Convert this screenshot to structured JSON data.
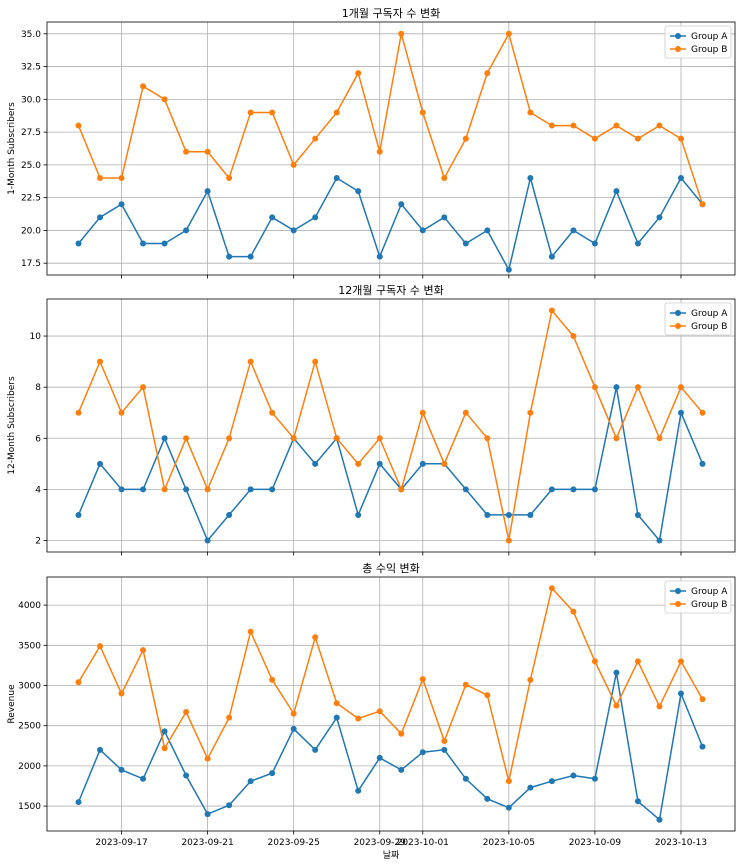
{
  "chart_data": [
    {
      "type": "line",
      "title": "1개월 구독자 수 변화",
      "xlabel": "",
      "ylabel": "1-Month Subscribers",
      "ylim": [
        16.6,
        35.9
      ],
      "yticks": [
        "17.5",
        "20.0",
        "22.5",
        "25.0",
        "27.5",
        "30.0",
        "32.5",
        "35.0"
      ],
      "ytick_values": [
        17.5,
        20.0,
        22.5,
        25.0,
        27.5,
        30.0,
        32.5,
        35.0
      ],
      "legend": "top-right",
      "grid": true,
      "series": [
        {
          "name": "Group A",
          "color": "#1f77b4",
          "values": [
            19,
            21,
            22,
            19,
            19,
            20,
            23,
            18,
            18,
            21,
            20,
            21,
            24,
            23,
            18,
            22,
            20,
            21,
            19,
            20,
            17,
            24,
            18,
            20,
            19,
            23,
            19,
            21,
            24,
            22
          ]
        },
        {
          "name": "Group B",
          "color": "#ff7f0e",
          "values": [
            28,
            24,
            24,
            31,
            30,
            26,
            26,
            24,
            29,
            29,
            25,
            27,
            29,
            32,
            26,
            35,
            29,
            24,
            27,
            32,
            35,
            29,
            28,
            28,
            27,
            28,
            27,
            28,
            27,
            22
          ]
        }
      ]
    },
    {
      "type": "line",
      "title": "12개월 구독자 수 변화",
      "xlabel": "",
      "ylabel": "12-Month Subscribers",
      "ylim": [
        1.55,
        11.45
      ],
      "yticks": [
        "2",
        "4",
        "6",
        "8",
        "10"
      ],
      "ytick_values": [
        2,
        4,
        6,
        8,
        10
      ],
      "legend": "top-right",
      "grid": true,
      "series": [
        {
          "name": "Group A",
          "color": "#1f77b4",
          "values": [
            3,
            5,
            4,
            4,
            6,
            4,
            2,
            3,
            4,
            4,
            6,
            5,
            6,
            3,
            5,
            4,
            5,
            5,
            4,
            3,
            3,
            3,
            4,
            4,
            4,
            8,
            3,
            2,
            7,
            5
          ]
        },
        {
          "name": "Group B",
          "color": "#ff7f0e",
          "values": [
            7,
            9,
            7,
            8,
            4,
            6,
            4,
            6,
            9,
            7,
            6,
            9,
            6,
            5,
            6,
            4,
            7,
            5,
            7,
            6,
            2,
            7,
            11,
            10,
            8,
            6,
            8,
            6,
            8,
            7
          ]
        }
      ]
    },
    {
      "type": "line",
      "title": "총 수익 변화",
      "xlabel": "날짜",
      "ylabel": "Revenue",
      "ylim": [
        1190,
        4350
      ],
      "yticks": [
        "1500",
        "2000",
        "2500",
        "3000",
        "3500",
        "4000"
      ],
      "ytick_values": [
        1500,
        2000,
        2500,
        3000,
        3500,
        4000
      ],
      "legend": "top-right",
      "grid": true,
      "series": [
        {
          "name": "Group A",
          "color": "#1f77b4",
          "values": [
            1550,
            2200,
            1950,
            1840,
            2430,
            1880,
            1400,
            1510,
            1810,
            1910,
            2460,
            2200,
            2600,
            1690,
            2100,
            1950,
            2170,
            2200,
            1840,
            1590,
            1480,
            1730,
            1810,
            1880,
            1840,
            3160,
            1560,
            1330,
            2900,
            2240
          ]
        },
        {
          "name": "Group B",
          "color": "#ff7f0e",
          "values": [
            3040,
            3490,
            2900,
            3440,
            2220,
            2670,
            2090,
            2600,
            3670,
            3070,
            2650,
            3600,
            2780,
            2590,
            2680,
            2400,
            3080,
            2310,
            3010,
            2880,
            1810,
            3070,
            4210,
            3920,
            3300,
            2750,
            3300,
            2740,
            3300,
            2830
          ]
        }
      ]
    }
  ],
  "x_axis": {
    "dates_count": 30,
    "tick_labels": [
      "2023-09-17",
      "2023-09-21",
      "2023-09-25",
      "2023-09-29",
      "2023-10-01",
      "2023-10-05",
      "2023-10-09",
      "2023-10-13"
    ],
    "tick_indices": [
      2,
      6,
      10,
      14,
      16,
      20,
      24,
      28
    ]
  }
}
